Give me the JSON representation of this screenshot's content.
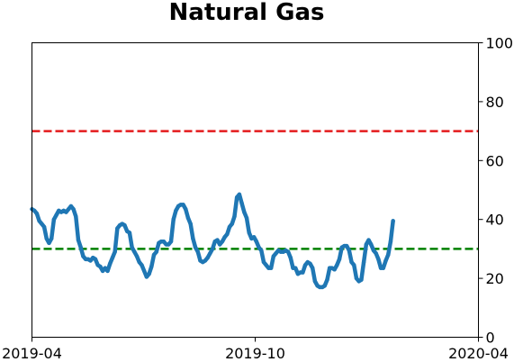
{
  "chart_data": {
    "type": "line",
    "title": "Natural Gas",
    "xlabel": "",
    "ylabel": "",
    "x_range": [
      "2019-04-01",
      "2020-04-01"
    ],
    "ylim": [
      0,
      100
    ],
    "y_axis_side": "right",
    "grid": false,
    "x_ticks": [
      {
        "date": "2019-04-01",
        "label": "2019-04"
      },
      {
        "date": "2019-10-01",
        "label": "2019-10"
      },
      {
        "date": "2020-04-01",
        "label": "2020-04"
      }
    ],
    "y_ticks": [
      0,
      20,
      40,
      60,
      80,
      100
    ],
    "reference_lines": [
      {
        "y": 70,
        "color": "#e41a1c",
        "style": "dashed"
      },
      {
        "y": 30,
        "color": "#008000",
        "style": "dashed"
      }
    ],
    "series": [
      {
        "color": "#1f77b4",
        "points": [
          [
            "2019-04-01",
            43.5
          ],
          [
            "2019-04-03",
            43.0
          ],
          [
            "2019-04-05",
            42.0
          ],
          [
            "2019-04-07",
            39.5
          ],
          [
            "2019-04-09",
            38.5
          ],
          [
            "2019-04-11",
            37.5
          ],
          [
            "2019-04-13",
            33.5
          ],
          [
            "2019-04-15",
            32.0
          ],
          [
            "2019-04-17",
            33.5
          ],
          [
            "2019-04-19",
            40.0
          ],
          [
            "2019-04-21",
            41.5
          ],
          [
            "2019-04-23",
            43.0
          ],
          [
            "2019-04-25",
            42.5
          ],
          [
            "2019-04-27",
            43.0
          ],
          [
            "2019-04-29",
            42.5
          ],
          [
            "2019-05-01",
            43.5
          ],
          [
            "2019-05-03",
            44.5
          ],
          [
            "2019-05-05",
            43.5
          ],
          [
            "2019-05-07",
            41.0
          ],
          [
            "2019-05-09",
            33.0
          ],
          [
            "2019-05-11",
            30.5
          ],
          [
            "2019-05-13",
            27.5
          ],
          [
            "2019-05-15",
            26.5
          ],
          [
            "2019-05-17",
            26.5
          ],
          [
            "2019-05-19",
            26.0
          ],
          [
            "2019-05-21",
            27.0
          ],
          [
            "2019-05-23",
            26.5
          ],
          [
            "2019-05-25",
            24.5
          ],
          [
            "2019-05-27",
            24.0
          ],
          [
            "2019-05-29",
            22.5
          ],
          [
            "2019-05-31",
            23.5
          ],
          [
            "2019-06-02",
            22.5
          ],
          [
            "2019-06-04",
            25.0
          ],
          [
            "2019-06-06",
            27.0
          ],
          [
            "2019-06-08",
            29.0
          ],
          [
            "2019-06-10",
            37.0
          ],
          [
            "2019-06-12",
            38.0
          ],
          [
            "2019-06-14",
            38.5
          ],
          [
            "2019-06-16",
            38.0
          ],
          [
            "2019-06-18",
            36.0
          ],
          [
            "2019-06-20",
            35.5
          ],
          [
            "2019-06-22",
            30.5
          ],
          [
            "2019-06-24",
            29.0
          ],
          [
            "2019-06-26",
            27.5
          ],
          [
            "2019-06-28",
            25.5
          ],
          [
            "2019-06-30",
            24.5
          ],
          [
            "2019-07-02",
            22.5
          ],
          [
            "2019-07-04",
            20.5
          ],
          [
            "2019-07-06",
            21.5
          ],
          [
            "2019-07-08",
            24.0
          ],
          [
            "2019-07-10",
            28.0
          ],
          [
            "2019-07-12",
            29.0
          ],
          [
            "2019-07-14",
            32.0
          ],
          [
            "2019-07-16",
            32.5
          ],
          [
            "2019-07-18",
            32.5
          ],
          [
            "2019-07-20",
            31.5
          ],
          [
            "2019-07-22",
            31.5
          ],
          [
            "2019-07-24",
            32.5
          ],
          [
            "2019-07-26",
            40.0
          ],
          [
            "2019-07-28",
            43.0
          ],
          [
            "2019-07-30",
            44.5
          ],
          [
            "2019-08-01",
            45.0
          ],
          [
            "2019-08-03",
            45.0
          ],
          [
            "2019-08-05",
            43.5
          ],
          [
            "2019-08-07",
            40.5
          ],
          [
            "2019-08-09",
            38.5
          ],
          [
            "2019-08-11",
            33.5
          ],
          [
            "2019-08-13",
            30.5
          ],
          [
            "2019-08-15",
            29.0
          ],
          [
            "2019-08-17",
            26.0
          ],
          [
            "2019-08-19",
            25.5
          ],
          [
            "2019-08-21",
            26.0
          ],
          [
            "2019-08-23",
            27.0
          ],
          [
            "2019-08-25",
            28.5
          ],
          [
            "2019-08-27",
            30.0
          ],
          [
            "2019-08-29",
            32.5
          ],
          [
            "2019-08-31",
            33.0
          ],
          [
            "2019-09-02",
            31.5
          ],
          [
            "2019-09-04",
            32.5
          ],
          [
            "2019-09-06",
            34.0
          ],
          [
            "2019-09-08",
            35.0
          ],
          [
            "2019-09-10",
            37.5
          ],
          [
            "2019-09-12",
            38.5
          ],
          [
            "2019-09-14",
            41.0
          ],
          [
            "2019-09-16",
            47.5
          ],
          [
            "2019-09-18",
            48.5
          ],
          [
            "2019-09-20",
            45.5
          ],
          [
            "2019-09-22",
            42.5
          ],
          [
            "2019-09-24",
            40.5
          ],
          [
            "2019-09-26",
            35.5
          ],
          [
            "2019-09-28",
            33.5
          ],
          [
            "2019-09-30",
            34.0
          ],
          [
            "2019-10-02",
            32.5
          ],
          [
            "2019-10-04",
            30.5
          ],
          [
            "2019-10-06",
            29.5
          ],
          [
            "2019-10-08",
            25.5
          ],
          [
            "2019-10-10",
            24.5
          ],
          [
            "2019-10-12",
            23.5
          ],
          [
            "2019-10-14",
            23.5
          ],
          [
            "2019-10-16",
            27.5
          ],
          [
            "2019-10-18",
            28.5
          ],
          [
            "2019-10-20",
            29.5
          ],
          [
            "2019-10-22",
            29.0
          ],
          [
            "2019-10-24",
            29.0
          ],
          [
            "2019-10-26",
            29.5
          ],
          [
            "2019-10-28",
            29.0
          ],
          [
            "2019-10-30",
            27.0
          ],
          [
            "2019-11-01",
            23.5
          ],
          [
            "2019-11-03",
            23.5
          ],
          [
            "2019-11-05",
            21.5
          ],
          [
            "2019-11-07",
            22.0
          ],
          [
            "2019-11-09",
            22.0
          ],
          [
            "2019-11-11",
            24.5
          ],
          [
            "2019-11-13",
            25.5
          ],
          [
            "2019-11-15",
            25.0
          ],
          [
            "2019-11-17",
            23.5
          ],
          [
            "2019-11-19",
            19.0
          ],
          [
            "2019-11-21",
            17.5
          ],
          [
            "2019-11-23",
            17.0
          ],
          [
            "2019-11-25",
            17.0
          ],
          [
            "2019-11-27",
            17.5
          ],
          [
            "2019-11-29",
            19.5
          ],
          [
            "2019-12-01",
            23.5
          ],
          [
            "2019-12-03",
            23.5
          ],
          [
            "2019-12-05",
            23.0
          ],
          [
            "2019-12-07",
            24.5
          ],
          [
            "2019-12-09",
            26.5
          ],
          [
            "2019-12-11",
            30.5
          ],
          [
            "2019-12-13",
            31.0
          ],
          [
            "2019-12-15",
            31.0
          ],
          [
            "2019-12-17",
            29.5
          ],
          [
            "2019-12-19",
            25.5
          ],
          [
            "2019-12-21",
            24.5
          ],
          [
            "2019-12-23",
            20.0
          ],
          [
            "2019-12-25",
            19.0
          ],
          [
            "2019-12-27",
            19.5
          ],
          [
            "2019-12-29",
            25.5
          ],
          [
            "2019-12-31",
            31.5
          ],
          [
            "2020-01-02",
            33.0
          ],
          [
            "2020-01-04",
            31.5
          ],
          [
            "2020-01-06",
            29.5
          ],
          [
            "2020-01-08",
            28.5
          ],
          [
            "2020-01-10",
            26.5
          ],
          [
            "2020-01-12",
            23.5
          ],
          [
            "2020-01-14",
            23.5
          ],
          [
            "2020-01-16",
            26.0
          ],
          [
            "2020-01-18",
            28.0
          ],
          [
            "2020-01-20",
            32.5
          ],
          [
            "2020-01-22",
            39.5
          ]
        ]
      }
    ]
  }
}
